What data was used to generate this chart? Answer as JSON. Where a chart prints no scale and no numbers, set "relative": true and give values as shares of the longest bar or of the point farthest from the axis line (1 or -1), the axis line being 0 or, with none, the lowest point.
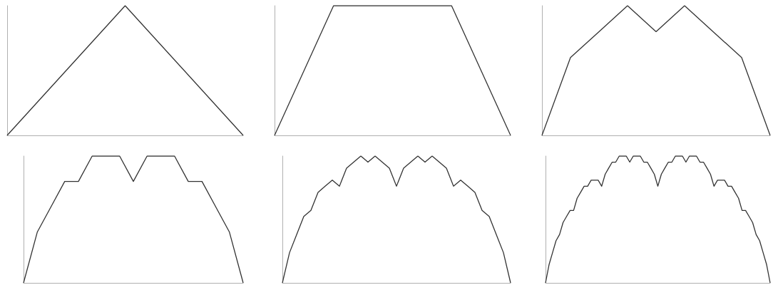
{
  "chart_data": [
    {
      "type": "line",
      "relative": true,
      "categories": [
        null,
        null,
        null
      ],
      "series": [
        {
          "color": "#333333",
          "values": [
            0,
            1,
            0
          ]
        }
      ]
    },
    {
      "type": "line",
      "relative": true,
      "categories": [
        null,
        null,
        null,
        null,
        null
      ],
      "series": [
        {
          "color": "#333333",
          "values": [
            0,
            1,
            1,
            1,
            0
          ]
        }
      ]
    },
    {
      "type": "line",
      "relative": true,
      "categories": [
        null,
        null,
        null,
        null,
        null,
        null,
        null,
        null,
        null
      ],
      "series": [
        {
          "color": "#333333",
          "values": [
            0,
            0.6,
            0.8,
            1,
            0.8,
            1,
            0.8,
            0.6,
            0
          ]
        }
      ]
    },
    {
      "type": "line",
      "relative": true,
      "categories": [
        null,
        null,
        null,
        null,
        null,
        null,
        null,
        null,
        null,
        null,
        null,
        null,
        null,
        null,
        null,
        null,
        null
      ],
      "series": [
        {
          "color": "#333333",
          "values": [
            0,
            0.4,
            0.6,
            0.8,
            0.8,
            1,
            1,
            1,
            0.8,
            1,
            1,
            1,
            0.8,
            0.8,
            0.6,
            0.4,
            0
          ]
        }
      ]
    },
    {
      "type": "line",
      "relative": true,
      "categories": [
        null,
        null,
        null,
        null,
        null,
        null,
        null,
        null,
        null,
        null,
        null,
        null,
        null,
        null,
        null,
        null,
        null,
        null,
        null,
        null,
        null,
        null,
        null,
        null,
        null,
        null,
        null,
        null,
        null,
        null,
        null,
        null,
        null
      ],
      "series": [
        {
          "color": "#333333",
          "values": [
            0,
            0.238,
            0.381,
            0.524,
            0.571,
            0.714,
            0.762,
            0.81,
            0.762,
            0.905,
            0.952,
            1,
            0.952,
            1,
            0.952,
            0.905,
            0.762,
            0.905,
            0.952,
            1,
            0.952,
            1,
            0.952,
            0.905,
            0.762,
            0.81,
            0.762,
            0.714,
            0.571,
            0.524,
            0.381,
            0.238,
            0
          ]
        }
      ]
    },
    {
      "type": "line",
      "relative": true,
      "categories": [
        null,
        null,
        null,
        null,
        null,
        null,
        null,
        null,
        null,
        null,
        null,
        null,
        null,
        null,
        null,
        null,
        null,
        null,
        null,
        null,
        null,
        null,
        null,
        null,
        null,
        null,
        null,
        null,
        null,
        null,
        null,
        null,
        null,
        null,
        null,
        null,
        null,
        null,
        null,
        null,
        null,
        null,
        null,
        null,
        null,
        null,
        null,
        null,
        null,
        null,
        null,
        null,
        null,
        null,
        null,
        null,
        null,
        null,
        null,
        null,
        null,
        null,
        null,
        null,
        null
      ],
      "series": [
        {
          "color": "#333333",
          "values": [
            0,
            0.143,
            0.238,
            0.333,
            0.381,
            0.476,
            0.524,
            0.571,
            0.571,
            0.667,
            0.714,
            0.762,
            0.762,
            0.81,
            0.81,
            0.81,
            0.762,
            0.857,
            0.905,
            0.952,
            0.952,
            1,
            1,
            1,
            0.952,
            1,
            1,
            1,
            0.952,
            0.952,
            0.905,
            0.857,
            0.762,
            0.857,
            0.905,
            0.952,
            0.952,
            1,
            1,
            1,
            0.952,
            1,
            1,
            1,
            0.952,
            0.952,
            0.905,
            0.857,
            0.762,
            0.81,
            0.81,
            0.81,
            0.762,
            0.762,
            0.714,
            0.667,
            0.571,
            0.571,
            0.524,
            0.476,
            0.381,
            0.333,
            0.238,
            0.143,
            0
          ]
        }
      ]
    }
  ]
}
